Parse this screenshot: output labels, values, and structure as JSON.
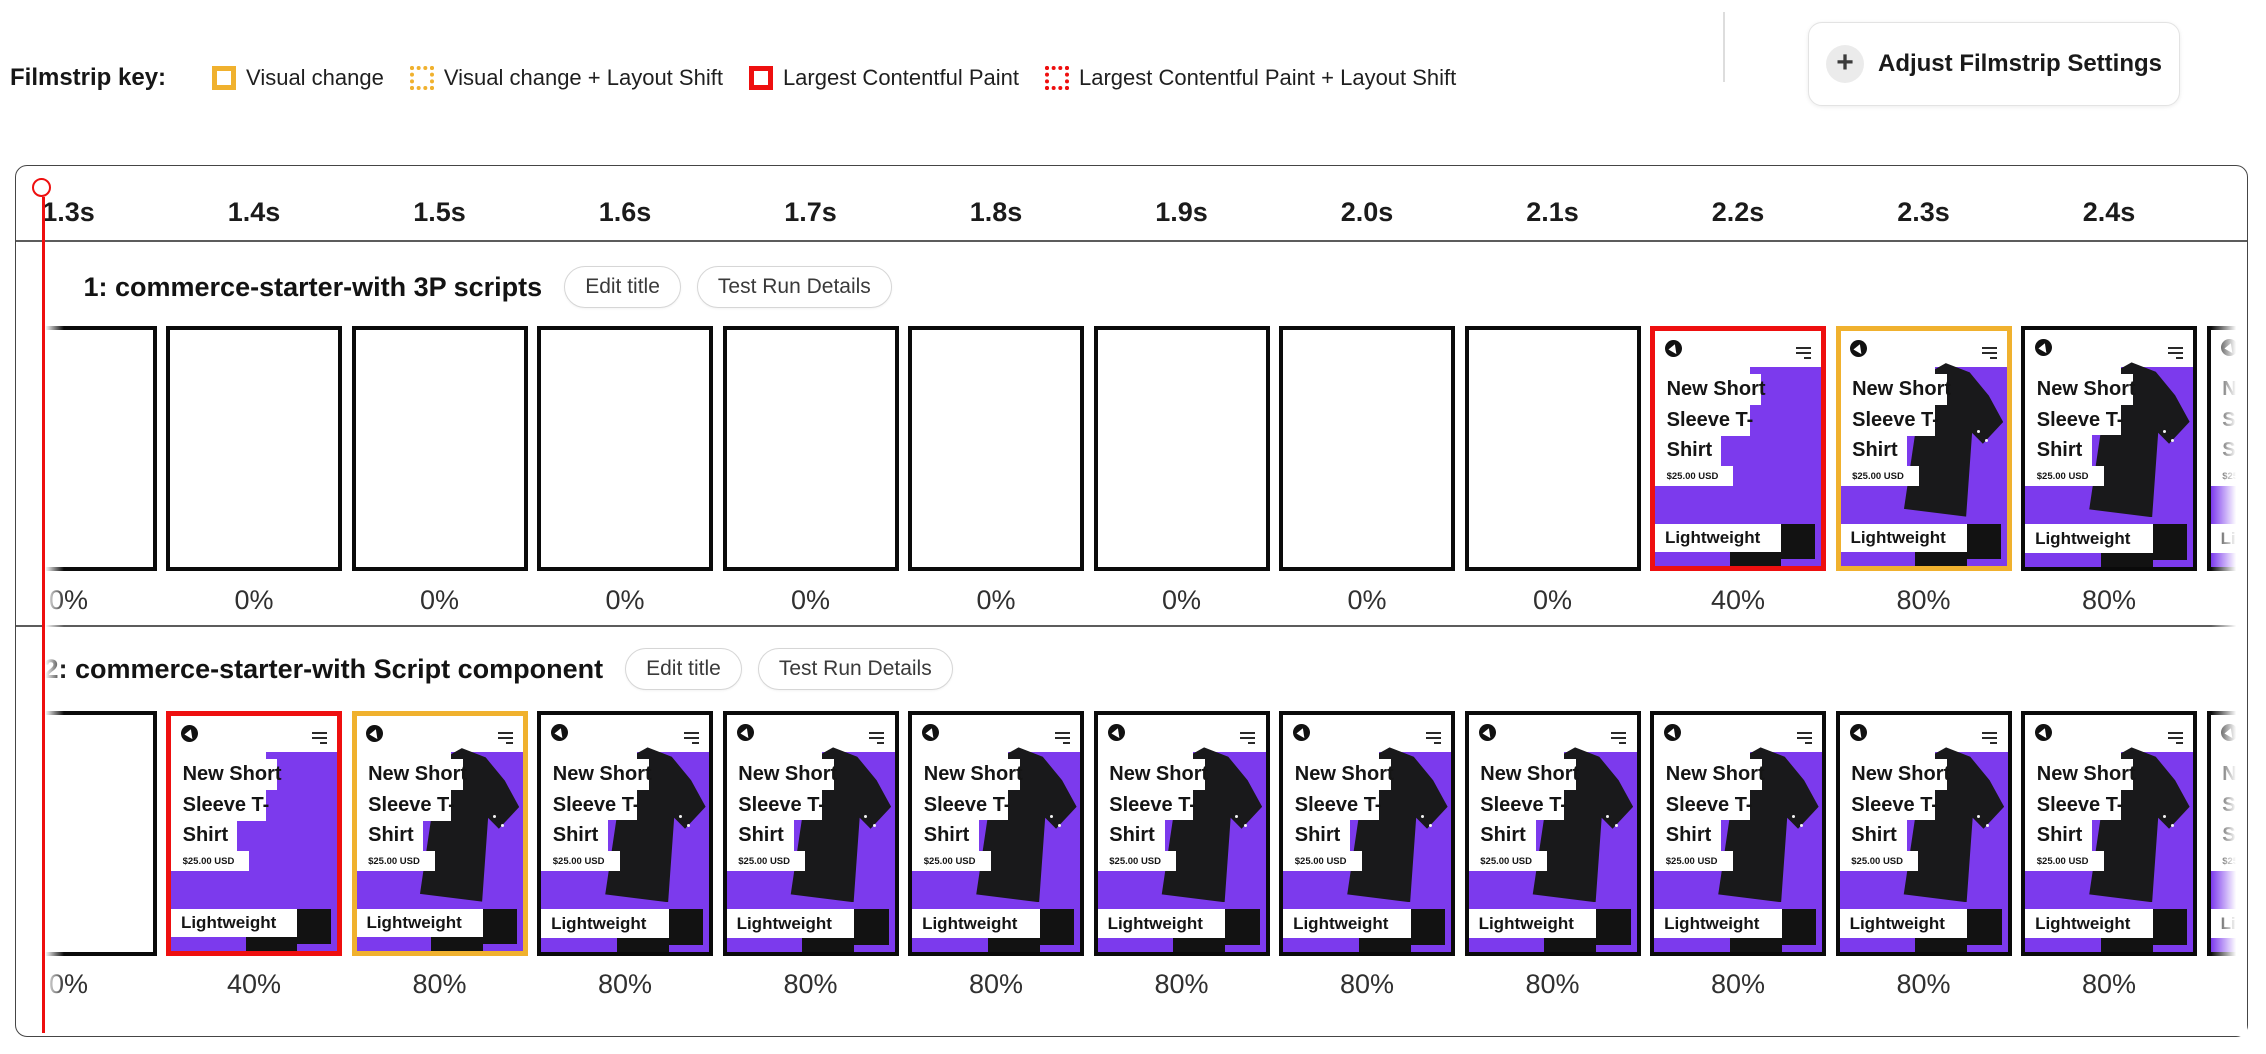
{
  "legend": {
    "title": "Filmstrip key:",
    "items": [
      {
        "label": "Visual change",
        "style": "solid",
        "color": "yellow"
      },
      {
        "label": "Visual change + Layout Shift",
        "style": "dotted",
        "color": "yellow"
      },
      {
        "label": "Largest Contentful Paint",
        "style": "solid",
        "color": "red"
      },
      {
        "label": "Largest Contentful Paint + Layout Shift",
        "style": "dotted",
        "color": "red"
      }
    ]
  },
  "settings_button": {
    "label": "Adjust Filmstrip Settings",
    "icon": "plus-icon"
  },
  "timeline": {
    "ticks": [
      "1.3s",
      "1.4s",
      "1.5s",
      "1.6s",
      "1.7s",
      "1.8s",
      "1.9s",
      "2.0s",
      "2.1s",
      "2.2s",
      "2.3s",
      "2.4s"
    ]
  },
  "rows": [
    {
      "title": "1: commerce-starter-with 3P scripts",
      "buttons": [
        "Edit title",
        "Test Run Details"
      ],
      "frames": [
        {
          "progress": "0%",
          "state": "blank"
        },
        {
          "progress": "0%",
          "state": "blank"
        },
        {
          "progress": "0%",
          "state": "blank"
        },
        {
          "progress": "0%",
          "state": "blank"
        },
        {
          "progress": "0%",
          "state": "blank"
        },
        {
          "progress": "0%",
          "state": "blank"
        },
        {
          "progress": "0%",
          "state": "blank"
        },
        {
          "progress": "0%",
          "state": "blank"
        },
        {
          "progress": "0%",
          "state": "blank"
        },
        {
          "progress": "40%",
          "state": "lcp40"
        },
        {
          "progress": "80%",
          "state": "vc80"
        },
        {
          "progress": "80%",
          "state": "plain80"
        },
        {
          "progress": null,
          "state": "plain80"
        }
      ]
    },
    {
      "title": "2: commerce-starter-with Script component",
      "buttons": [
        "Edit title",
        "Test Run Details"
      ],
      "frames": [
        {
          "progress": "0%",
          "state": "blank"
        },
        {
          "progress": "40%",
          "state": "lcp40"
        },
        {
          "progress": "80%",
          "state": "vc80"
        },
        {
          "progress": "80%",
          "state": "plain80"
        },
        {
          "progress": "80%",
          "state": "plain80"
        },
        {
          "progress": "80%",
          "state": "plain80"
        },
        {
          "progress": "80%",
          "state": "plain80"
        },
        {
          "progress": "80%",
          "state": "plain80"
        },
        {
          "progress": "80%",
          "state": "plain80"
        },
        {
          "progress": "80%",
          "state": "plain80"
        },
        {
          "progress": "80%",
          "state": "plain80"
        },
        {
          "progress": "80%",
          "state": "plain80"
        },
        {
          "progress": null,
          "state": "plain80"
        }
      ]
    }
  ],
  "frame_screen": {
    "heading_lines": [
      "New Short",
      "Sleeve T-",
      "Shirt"
    ],
    "price": "$25.00 USD",
    "footer": "Lightweight"
  },
  "colors": {
    "yellow": "#f0b12e",
    "red": "#ee0f0f",
    "purple": "#7c3aed"
  }
}
